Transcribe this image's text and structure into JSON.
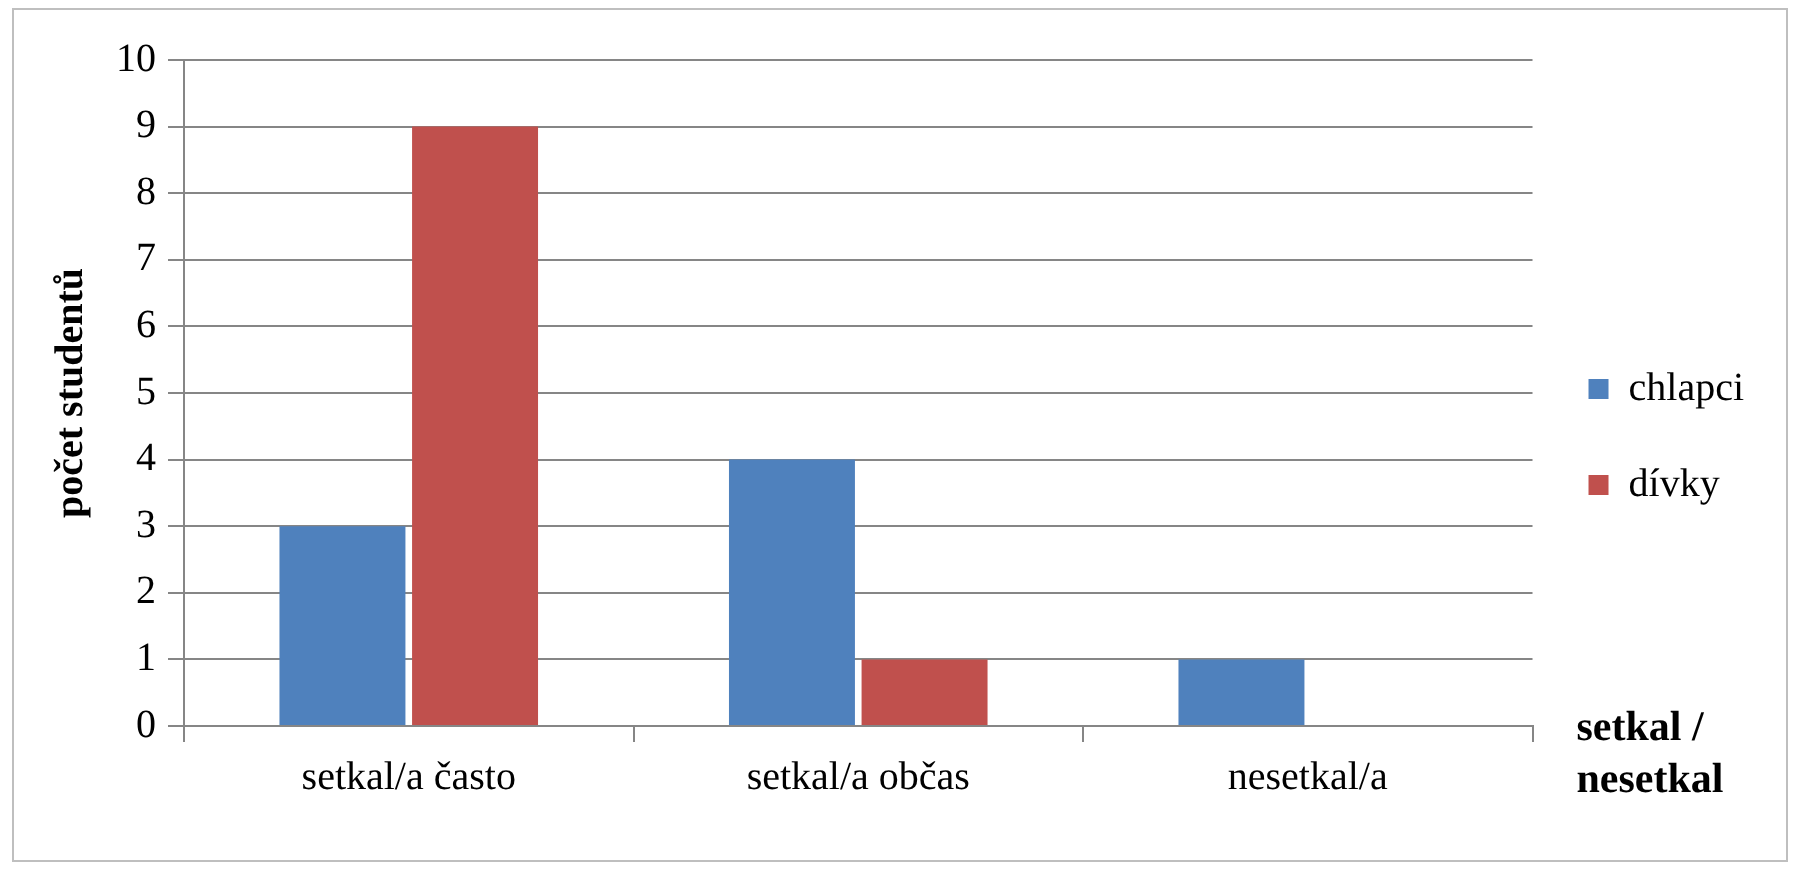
{
  "chart_data": {
    "type": "bar",
    "ylabel": "počet studentů",
    "xlabel": "setkal / nesetkal",
    "categories": [
      "setkal/a často",
      "setkal/a občas",
      "nesetkal/a"
    ],
    "series": [
      {
        "name": "chlapci",
        "color": "#4f81bd",
        "values": [
          3,
          4,
          1
        ]
      },
      {
        "name": "dívky",
        "color": "#c0504d",
        "values": [
          9,
          1,
          0
        ]
      }
    ],
    "ylim": [
      0,
      10
    ],
    "yticks": [
      0,
      1,
      2,
      3,
      4,
      5,
      6,
      7,
      8,
      9,
      10
    ],
    "grid": "y",
    "legend": "right"
  }
}
